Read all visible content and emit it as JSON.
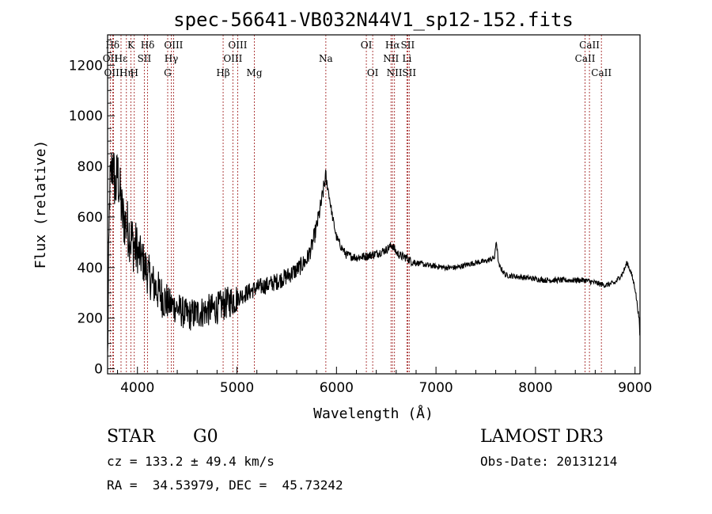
{
  "chart_data": {
    "type": "line",
    "title": "spec-56641-VB032N44V1_sp12-152.fits",
    "xlabel": "Wavelength (Å)",
    "ylabel": "Flux (relative)",
    "xlim": [
      3700,
      9050
    ],
    "ylim": [
      -20,
      1320
    ],
    "xticks": [
      4000,
      5000,
      6000,
      7000,
      8000,
      9000
    ],
    "yticks": [
      0,
      200,
      400,
      600,
      800,
      1000,
      1200
    ],
    "grid": false,
    "spectrum_knots": [
      [
        3700,
        30
      ],
      [
        3720,
        700
      ],
      [
        3750,
        820
      ],
      [
        3780,
        700
      ],
      [
        3800,
        780
      ],
      [
        3850,
        600
      ],
      [
        3900,
        560
      ],
      [
        3950,
        500
      ],
      [
        4000,
        460
      ],
      [
        4050,
        430
      ],
      [
        4100,
        380
      ],
      [
        4150,
        340
      ],
      [
        4200,
        310
      ],
      [
        4300,
        260
      ],
      [
        4400,
        240
      ],
      [
        4500,
        210
      ],
      [
        4600,
        220
      ],
      [
        4700,
        230
      ],
      [
        4800,
        240
      ],
      [
        4900,
        260
      ],
      [
        5000,
        280
      ],
      [
        5100,
        300
      ],
      [
        5200,
        320
      ],
      [
        5300,
        330
      ],
      [
        5400,
        345
      ],
      [
        5500,
        365
      ],
      [
        5600,
        390
      ],
      [
        5700,
        430
      ],
      [
        5750,
        480
      ],
      [
        5800,
        560
      ],
      [
        5850,
        660
      ],
      [
        5890,
        760
      ],
      [
        5920,
        700
      ],
      [
        5960,
        600
      ],
      [
        6000,
        520
      ],
      [
        6050,
        480
      ],
      [
        6100,
        450
      ],
      [
        6200,
        440
      ],
      [
        6300,
        445
      ],
      [
        6400,
        455
      ],
      [
        6500,
        470
      ],
      [
        6560,
        490
      ],
      [
        6600,
        460
      ],
      [
        6650,
        445
      ],
      [
        6700,
        440
      ],
      [
        6750,
        425
      ],
      [
        6800,
        420
      ],
      [
        6900,
        410
      ],
      [
        7000,
        405
      ],
      [
        7100,
        400
      ],
      [
        7200,
        400
      ],
      [
        7300,
        410
      ],
      [
        7400,
        420
      ],
      [
        7500,
        425
      ],
      [
        7590,
        440
      ],
      [
        7605,
        510
      ],
      [
        7630,
        410
      ],
      [
        7700,
        370
      ],
      [
        7800,
        365
      ],
      [
        7900,
        360
      ],
      [
        8000,
        355
      ],
      [
        8100,
        350
      ],
      [
        8200,
        350
      ],
      [
        8300,
        350
      ],
      [
        8400,
        350
      ],
      [
        8500,
        350
      ],
      [
        8600,
        340
      ],
      [
        8700,
        330
      ],
      [
        8800,
        340
      ],
      [
        8880,
        380
      ],
      [
        8920,
        420
      ],
      [
        8960,
        380
      ],
      [
        9000,
        320
      ],
      [
        9040,
        200
      ],
      [
        9050,
        120
      ]
    ],
    "spectral_lines": [
      {
        "label": "Hδ",
        "wavelength": 3750,
        "row": 0
      },
      {
        "label": "OII",
        "wavelength": 3727,
        "row": 1
      },
      {
        "label": "OIII",
        "wavelength": 3760,
        "row": 2
      },
      {
        "label": "Hε",
        "wavelength": 3835,
        "row": 1
      },
      {
        "label": "Hη",
        "wavelength": 3889,
        "row": 2
      },
      {
        "label": "K",
        "wavelength": 3934,
        "row": 0
      },
      {
        "label": "SII",
        "wavelength": 4069,
        "row": 1
      },
      {
        "label": "H",
        "wavelength": 3968,
        "row": 2
      },
      {
        "label": "Hδ",
        "wavelength": 4102,
        "row": 0
      },
      {
        "label": "OIII",
        "wavelength": 4363,
        "row": 0
      },
      {
        "label": "Hγ",
        "wavelength": 4340,
        "row": 1
      },
      {
        "label": "G",
        "wavelength": 4304,
        "row": 2
      },
      {
        "label": "OIII",
        "wavelength": 5007,
        "row": 0
      },
      {
        "label": "OIII",
        "wavelength": 4959,
        "row": 1
      },
      {
        "label": "Hβ",
        "wavelength": 4861,
        "row": 2
      },
      {
        "label": "Mg",
        "wavelength": 5175,
        "row": 2
      },
      {
        "label": "Na",
        "wavelength": 5893,
        "row": 1
      },
      {
        "label": "OI",
        "wavelength": 6300,
        "row": 0
      },
      {
        "label": "OI",
        "wavelength": 6364,
        "row": 2
      },
      {
        "label": "Hα",
        "wavelength": 6563,
        "row": 0
      },
      {
        "label": "NII",
        "wavelength": 6548,
        "row": 1
      },
      {
        "label": "NII",
        "wavelength": 6583,
        "row": 2
      },
      {
        "label": "SII",
        "wavelength": 6716,
        "row": 0
      },
      {
        "label": "Li",
        "wavelength": 6708,
        "row": 1
      },
      {
        "label": "SII",
        "wavelength": 6731,
        "row": 2
      },
      {
        "label": "CaII",
        "wavelength": 8542,
        "row": 0
      },
      {
        "label": "CaII",
        "wavelength": 8498,
        "row": 1
      },
      {
        "label": "CaII",
        "wavelength": 8662,
        "row": 2
      }
    ]
  },
  "footer": {
    "class_label": "STAR",
    "subclass": "G0",
    "survey": "LAMOST DR3",
    "cz": "cz = 133.2 ± 49.4 km/s",
    "obs_date": "Obs-Date: 20131214",
    "radec": "RA =  34.53979, DEC =  45.73242"
  }
}
